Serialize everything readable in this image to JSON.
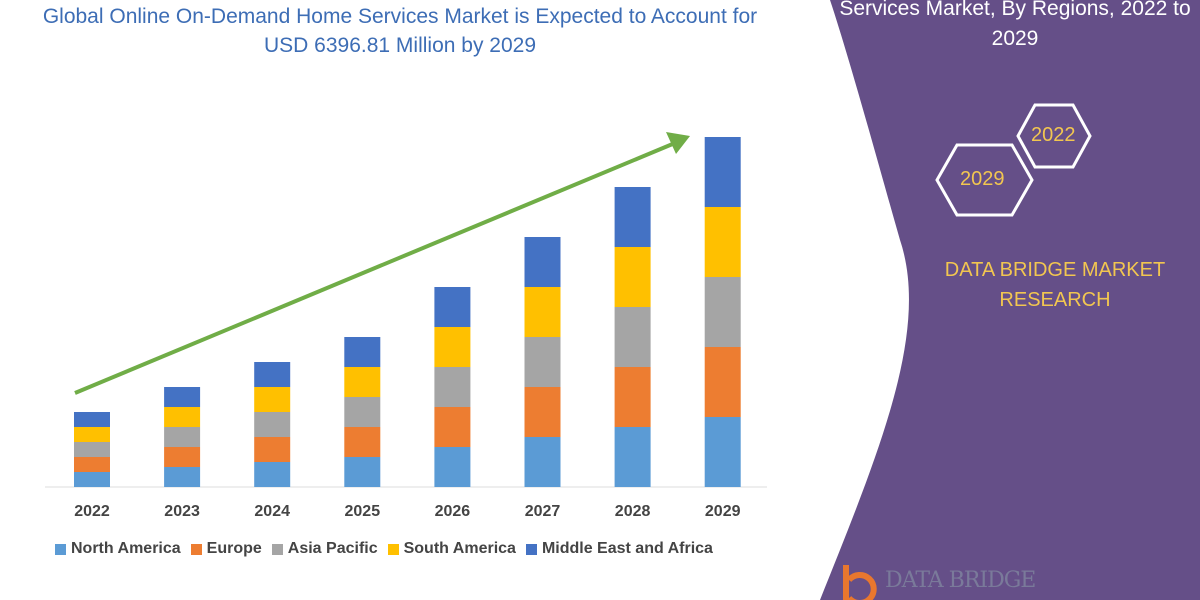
{
  "title_left": "Global Online On-Demand Home Services Market is Expected to Account for USD 6396.81 Million by 2029",
  "title_right": "Services Market, By Regions, 2022 to 2029",
  "hexagons": [
    "2022",
    "2029"
  ],
  "brand": "DATA BRIDGE MARKET RESEARCH",
  "logo_text": "DATA BRIDGE",
  "colors": {
    "panel": "#654f88",
    "arrow": "#70ad47",
    "accent_text": "#f2c650"
  },
  "chart_data": {
    "type": "bar",
    "stacked": true,
    "categories": [
      "2022",
      "2023",
      "2024",
      "2025",
      "2026",
      "2027",
      "2028",
      "2029"
    ],
    "series": [
      {
        "name": "North America",
        "color": "#5b9bd5",
        "values": [
          3,
          4,
          5,
          6,
          8,
          10,
          12,
          14
        ]
      },
      {
        "name": "Europe",
        "color": "#ed7d31",
        "values": [
          3,
          4,
          5,
          6,
          8,
          10,
          12,
          14
        ]
      },
      {
        "name": "Asia Pacific",
        "color": "#a5a5a5",
        "values": [
          3,
          4,
          5,
          6,
          8,
          10,
          12,
          14
        ]
      },
      {
        "name": "South America",
        "color": "#ffc000",
        "values": [
          3,
          4,
          5,
          6,
          8,
          10,
          12,
          14
        ]
      },
      {
        "name": "Middle East and Africa",
        "color": "#4472c4",
        "values": [
          3,
          4,
          5,
          6,
          8,
          10,
          12,
          14
        ]
      }
    ],
    "legend_position": "bottom",
    "grid": false,
    "trend_arrow": true
  }
}
